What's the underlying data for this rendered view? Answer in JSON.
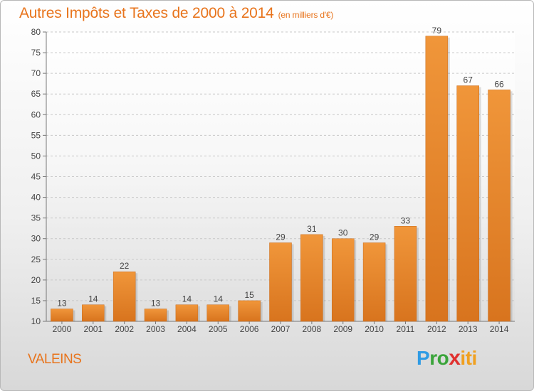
{
  "header": {
    "title": "Autres Impôts et Taxes de 2000 à 2014",
    "subtitle": "(en milliers d'€)"
  },
  "commune": "VALEINS",
  "logo": {
    "text": "Proxiti",
    "fragments": [
      "P",
      "ro",
      "x",
      "iti"
    ]
  },
  "colors": {
    "bar": "#f0963a",
    "bar_dark": "#d8741e",
    "title": "#e8741c",
    "grid": "#c8c8c8",
    "axis_text": "#444444"
  },
  "chart_data": {
    "type": "bar",
    "title": "Autres Impôts et Taxes de 2000 à 2014",
    "subtitle": "(en milliers d'€)",
    "xlabel": "",
    "ylabel": "",
    "categories": [
      "2000",
      "2001",
      "2002",
      "2003",
      "2004",
      "2005",
      "2006",
      "2007",
      "2008",
      "2009",
      "2010",
      "2011",
      "2012",
      "2013",
      "2014"
    ],
    "values": [
      13,
      14,
      22,
      13,
      14,
      14,
      15,
      29,
      31,
      30,
      29,
      33,
      79,
      67,
      66
    ],
    "ylim": [
      10,
      80
    ],
    "yticks": [
      10,
      15,
      20,
      25,
      30,
      35,
      40,
      45,
      50,
      55,
      60,
      65,
      70,
      75,
      80
    ],
    "grid": true,
    "data_labels": true
  }
}
